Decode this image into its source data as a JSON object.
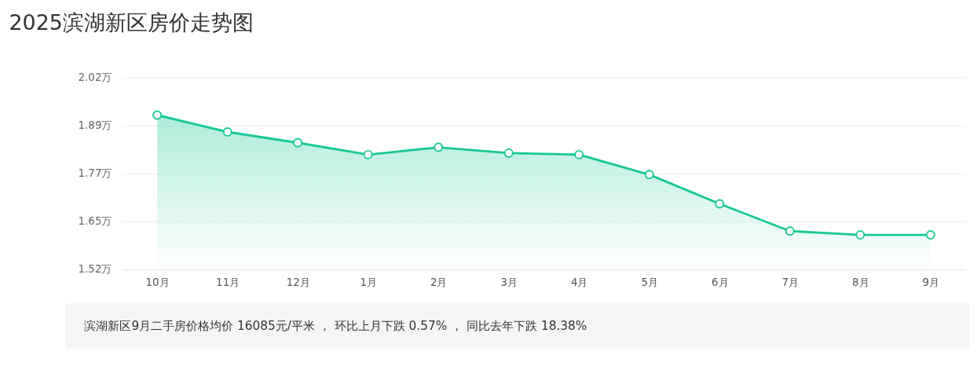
{
  "chart_data": {
    "type": "area",
    "title": "2025滨湖新区房价走势图",
    "categories": [
      "10月",
      "11月",
      "12月",
      "1月",
      "2月",
      "3月",
      "4月",
      "5月",
      "6月",
      "7月",
      "8月",
      "9月"
    ],
    "series": [
      {
        "color": "#19c896",
        "values": [
          1.922,
          1.878,
          1.85,
          1.819,
          1.838,
          1.823,
          1.819,
          1.767,
          1.691,
          1.62,
          1.61,
          1.61
        ]
      }
    ],
    "ylim": [
      1.52,
      2.02
    ],
    "yticks": [
      {
        "value": 1.52,
        "label": "1.52万"
      },
      {
        "value": 1.645,
        "label": "1.65万"
      },
      {
        "value": 1.77,
        "label": "1.77万"
      },
      {
        "value": 1.895,
        "label": "1.89万"
      },
      {
        "value": 2.02,
        "label": "2.02万"
      }
    ],
    "grid": "y",
    "marker": "circle",
    "line_style": "solid",
    "annotations": [
      "滨湖新区9月二手房价格均价 16085元/平米 ， 环比上月下跌 0.57% ， 同比去年下跌 18.38%"
    ]
  }
}
